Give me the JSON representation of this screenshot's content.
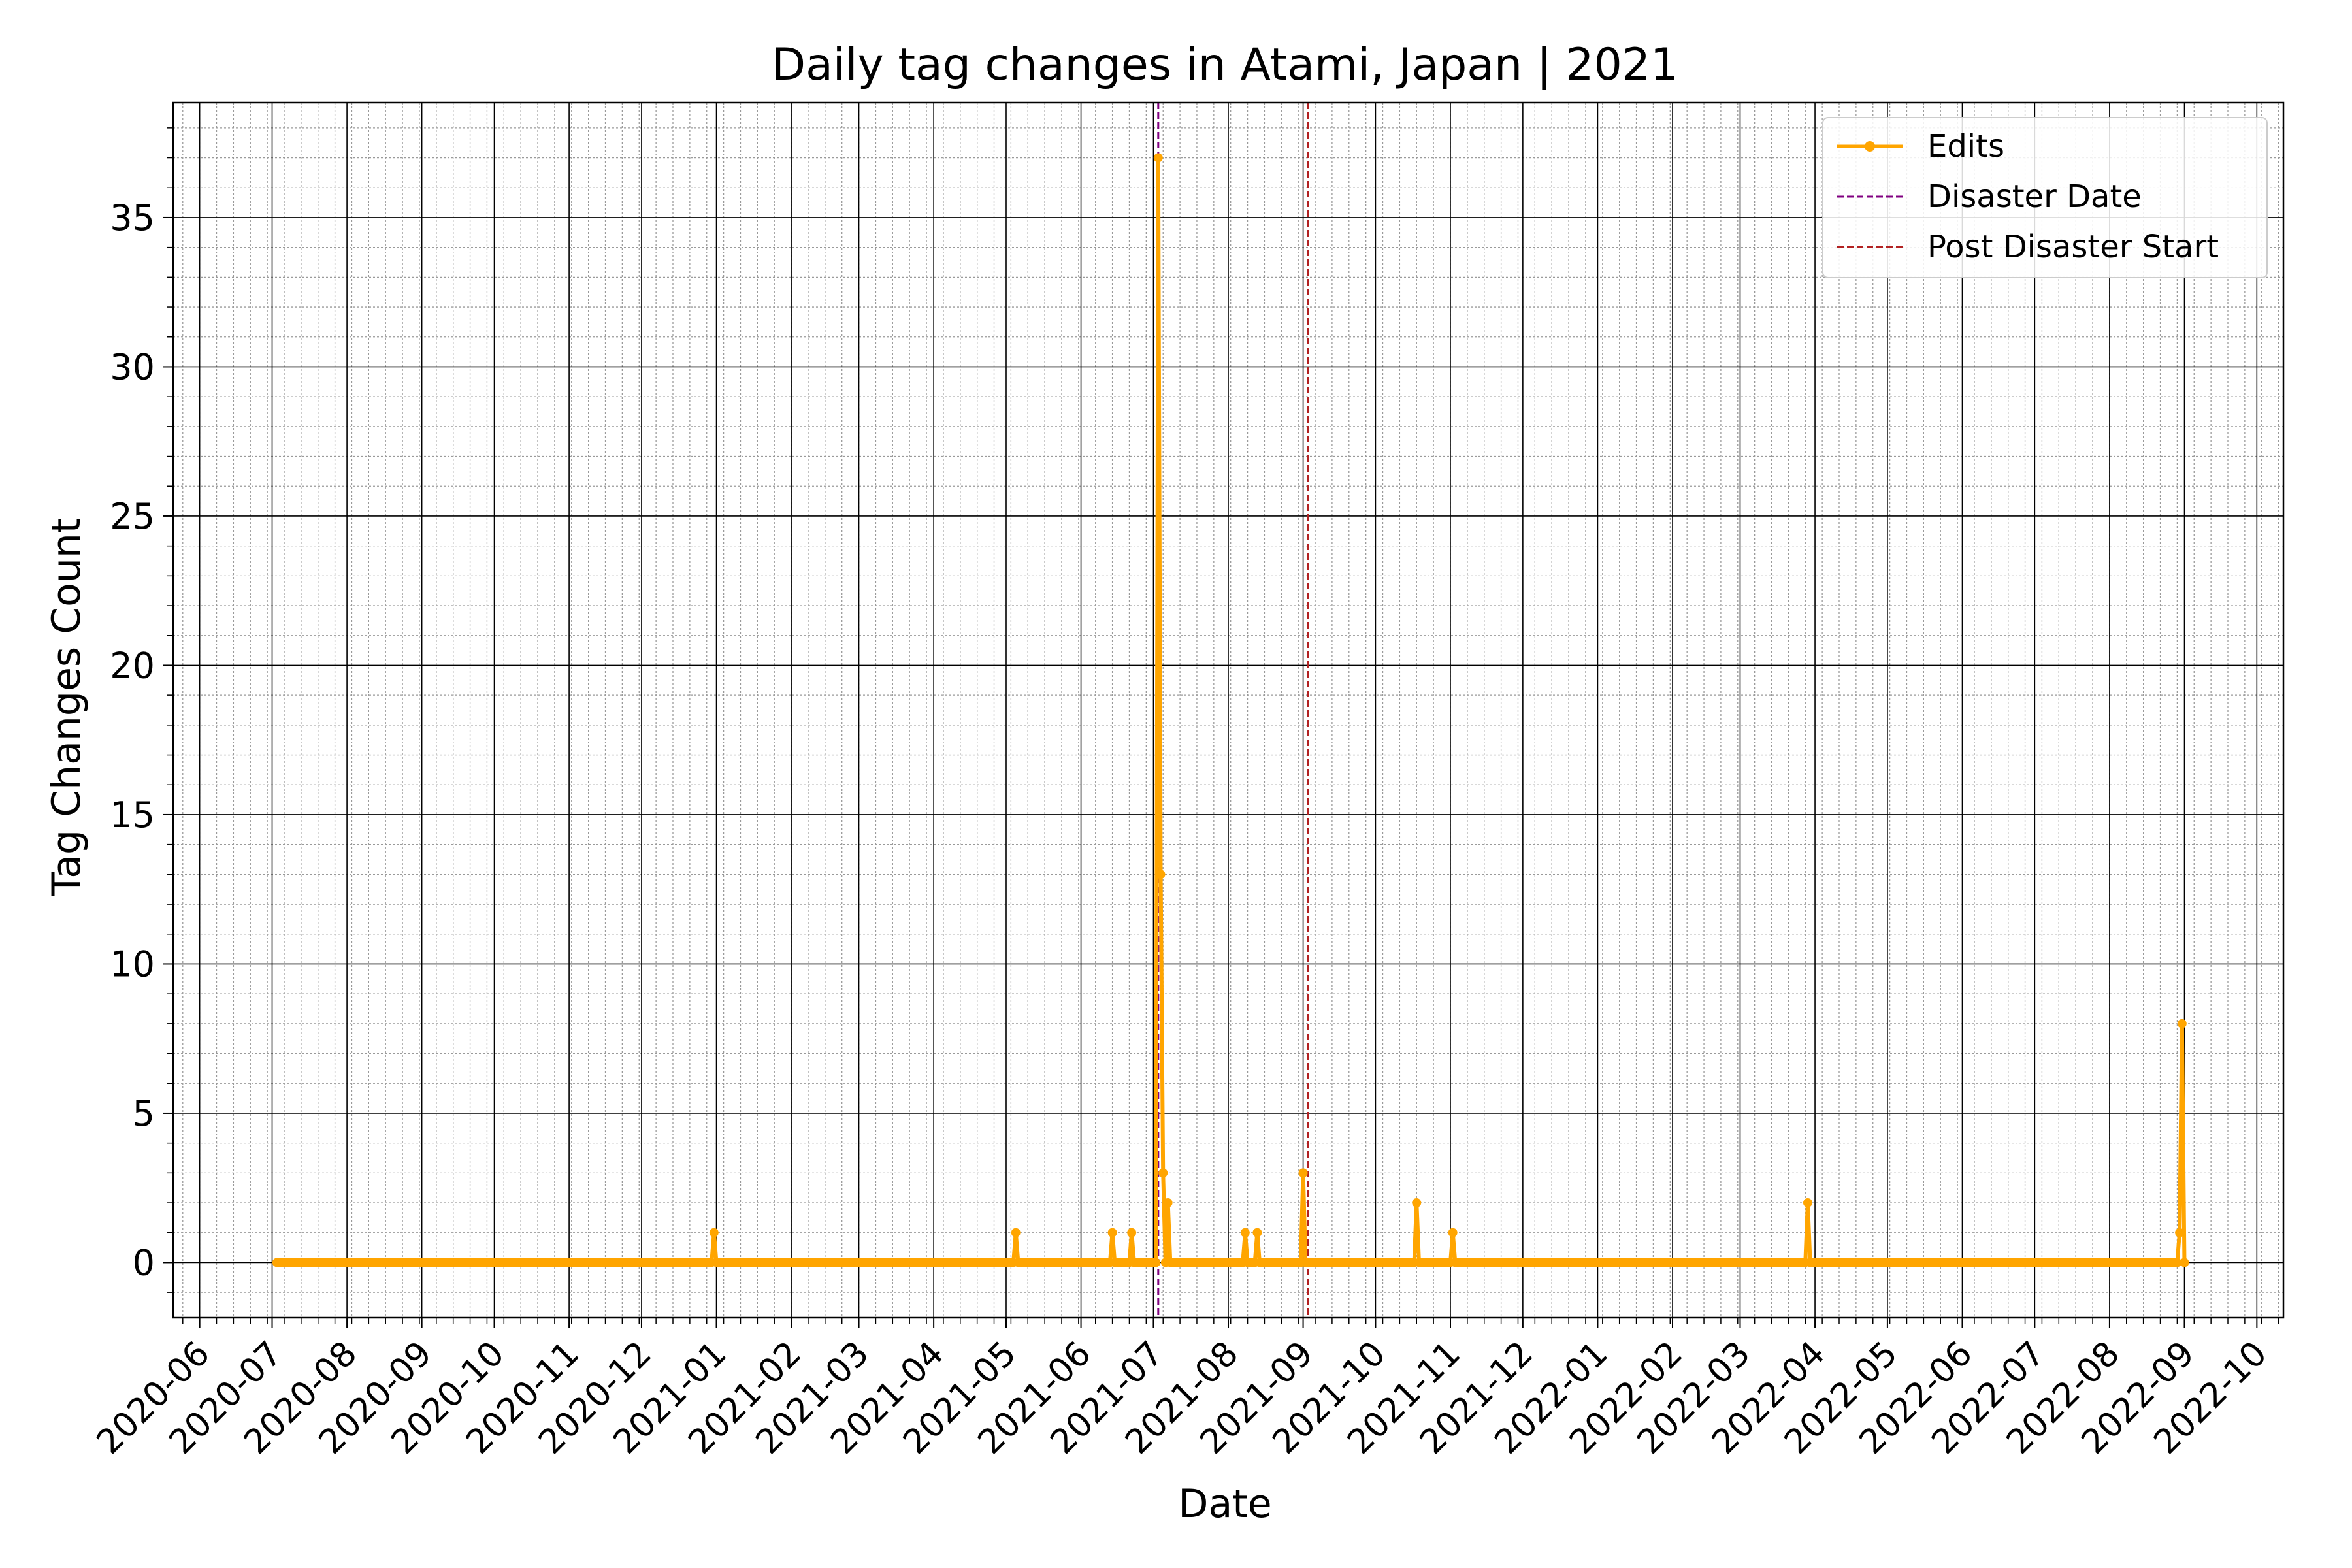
{
  "chart_data": {
    "type": "line",
    "title": "Daily tag changes in Atami, Japan | 2021",
    "xlabel": "Date",
    "ylabel": "Tag Changes Count",
    "xlim": [
      "2020-05-21",
      "2022-10-12"
    ],
    "ylim": [
      -1.85,
      38.85
    ],
    "grid": "major and minor",
    "legend_position": "top-right",
    "x_ticks": [
      "2020-06",
      "2020-07",
      "2020-08",
      "2020-09",
      "2020-10",
      "2020-11",
      "2020-12",
      "2021-01",
      "2021-02",
      "2021-03",
      "2021-04",
      "2021-05",
      "2021-06",
      "2021-07",
      "2021-08",
      "2021-09",
      "2021-10",
      "2021-11",
      "2021-12",
      "2022-01",
      "2022-02",
      "2022-03",
      "2022-04",
      "2022-05",
      "2022-06",
      "2022-07",
      "2022-08",
      "2022-09",
      "2022-10"
    ],
    "y_ticks": [
      0,
      5,
      10,
      15,
      20,
      25,
      30,
      35
    ],
    "series": [
      {
        "name": "Edits",
        "color": "#ffa500",
        "start": "2020-07-03",
        "end": "2022-09-01",
        "nonzero": [
          {
            "x": "2020-12-31",
            "y": 1
          },
          {
            "x": "2021-05-05",
            "y": 1
          },
          {
            "x": "2021-06-14",
            "y": 1
          },
          {
            "x": "2021-06-22",
            "y": 1
          },
          {
            "x": "2021-07-03",
            "y": 37
          },
          {
            "x": "2021-07-04",
            "y": 13
          },
          {
            "x": "2021-07-05",
            "y": 3
          },
          {
            "x": "2021-07-07",
            "y": 2
          },
          {
            "x": "2021-08-08",
            "y": 1
          },
          {
            "x": "2021-08-13",
            "y": 1
          },
          {
            "x": "2021-09-01",
            "y": 3
          },
          {
            "x": "2021-10-18",
            "y": 2
          },
          {
            "x": "2021-11-02",
            "y": 1
          },
          {
            "x": "2022-03-29",
            "y": 2
          },
          {
            "x": "2022-08-30",
            "y": 1
          },
          {
            "x": "2022-08-31",
            "y": 8
          }
        ]
      }
    ],
    "vlines": [
      {
        "name": "Disaster Date",
        "x": "2021-07-03",
        "color": "#800080",
        "style": "dashed"
      },
      {
        "name": "Post Disaster Start",
        "x": "2021-09-03",
        "color": "#b22222",
        "style": "dashed"
      }
    ]
  }
}
